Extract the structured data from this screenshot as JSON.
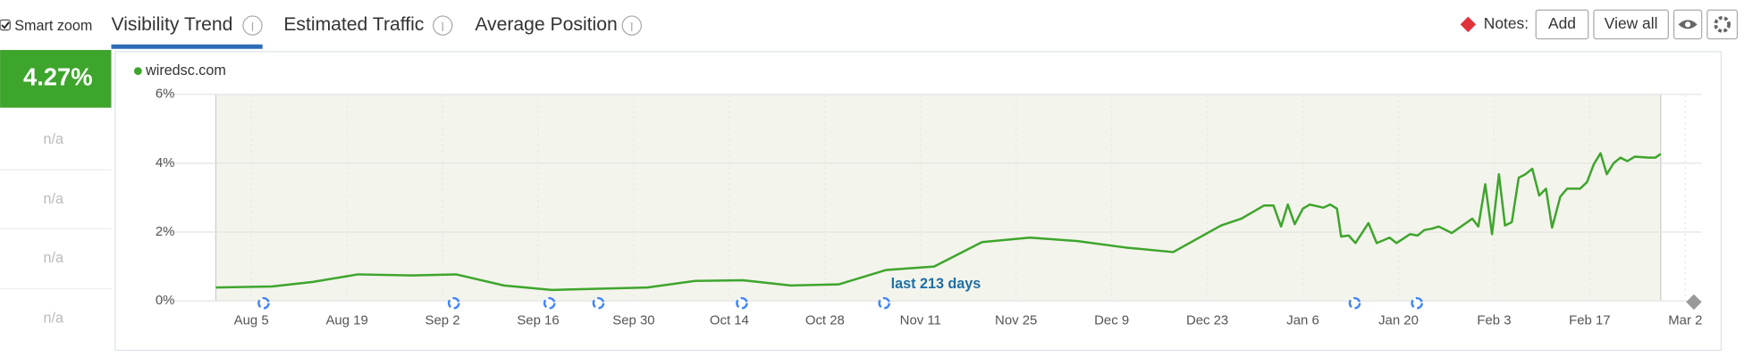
{
  "toolbar": {
    "smart_zoom": "Smart zoom",
    "tabs": [
      "Visibility Trend",
      "Estimated Traffic",
      "Average Position"
    ],
    "notes_label": "Notes:",
    "buttons": [
      "Add",
      "View all"
    ]
  },
  "summary": {
    "value": "4.27%",
    "rows": [
      "n/a",
      "n/a",
      "n/a",
      "n/a"
    ]
  },
  "chart_data": {
    "type": "line",
    "annotation": "last 213 days",
    "grid": true,
    "series": [
      {
        "name": "wiredsc.com",
        "color": "#3ea52c",
        "values": [
          0.39,
          0.42,
          0.55,
          0.77,
          0.74,
          0.77,
          0.45,
          0.32,
          0.39,
          0.58,
          0.6,
          0.45,
          0.48,
          0.9,
          1.0,
          1.71,
          1.84,
          1.74,
          1.55,
          1.42,
          2.19,
          2.39,
          2.77,
          2.77,
          2.16,
          2.8,
          2.23,
          2.68,
          2.8,
          2.71,
          2.8,
          2.68,
          1.87,
          1.9,
          1.68,
          2.26,
          1.68,
          1.84,
          1.68,
          1.94,
          1.9,
          2.06,
          2.1,
          2.16,
          2.06,
          1.97,
          2.39,
          2.16,
          3.39,
          1.94,
          3.68,
          2.19,
          2.29,
          3.58,
          3.68,
          3.84,
          3.06,
          3.26,
          2.13,
          3.03,
          3.26,
          3.26,
          3.45,
          3.97,
          4.29,
          3.68,
          4.0,
          4.16,
          4.06,
          4.19,
          4.16,
          4.16,
          4.27
        ]
      }
    ],
    "x": [
      -5.2,
      3,
      9,
      15.6,
      23.5,
      30,
      37,
      44,
      58,
      65,
      72,
      79,
      86,
      93,
      100,
      107,
      114,
      121,
      128,
      135,
      142,
      145,
      148.3,
      149.7,
      150.8,
      151.8,
      152.8,
      154,
      155,
      157,
      158,
      159,
      159.6,
      160.7,
      161.7,
      163.6,
      164.8,
      166.7,
      167.7,
      169.7,
      170.8,
      171.8,
      172.9,
      173.9,
      174.9,
      175.8,
      178.8,
      179.7,
      180.7,
      181.7,
      182.7,
      183.6,
      184.6,
      185.6,
      186.6,
      187.6,
      188.6,
      189.6,
      190.5,
      191.7,
      192.7,
      194.6,
      195.6,
      196.6,
      197.6,
      198.5,
      199.5,
      200.5,
      201.5,
      202.6,
      204.6,
      205.6,
      206.4
    ],
    "xlim": [
      -5.2,
      212.4
    ],
    "ylim": [
      0,
      6
    ],
    "xticks": [
      {
        "value": 0,
        "label": "Aug 5"
      },
      {
        "value": 14,
        "label": "Aug 19"
      },
      {
        "value": 28,
        "label": "Sep 2"
      },
      {
        "value": 42,
        "label": "Sep 16"
      },
      {
        "value": 56,
        "label": "Sep 30"
      },
      {
        "value": 70,
        "label": "Oct 14"
      },
      {
        "value": 84,
        "label": "Oct 28"
      },
      {
        "value": 98,
        "label": "Nov 11"
      },
      {
        "value": 112,
        "label": "Nov 25"
      },
      {
        "value": 126,
        "label": "Dec 9"
      },
      {
        "value": 140,
        "label": "Dec 23"
      },
      {
        "value": 154,
        "label": "Jan 6"
      },
      {
        "value": 168,
        "label": "Jan 20"
      },
      {
        "value": 182,
        "label": "Feb 3"
      },
      {
        "value": 196,
        "label": "Feb 17"
      },
      {
        "value": 210,
        "label": "Mar 2"
      }
    ],
    "yticks": [
      {
        "value": 0,
        "label": "0%"
      },
      {
        "value": 2,
        "label": "2%"
      },
      {
        "value": 4,
        "label": "4%"
      },
      {
        "value": 6,
        "label": "6%"
      }
    ]
  }
}
